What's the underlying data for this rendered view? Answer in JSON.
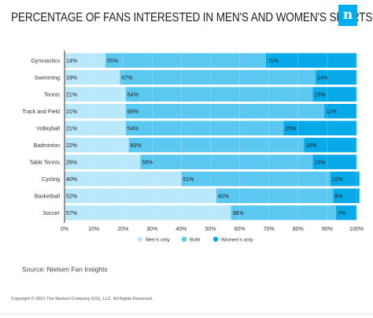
{
  "header": {
    "title": "PERCENTAGE OF FANS INTERESTED IN MEN'S AND WOMEN'S SPORTS",
    "logo_glyph": "n",
    "logo_color": "#00aeef"
  },
  "footer": {
    "source": "Source: Nielsen Fan Insights",
    "copyright": "Copyright © 2021 The Nielsen Company (US), LLC. All Rights Reserved."
  },
  "chart_data": {
    "type": "bar",
    "orientation": "horizontal",
    "stacked": true,
    "categories": [
      "Gymnastics",
      "Swimming",
      "Tennis",
      "Track and Field",
      "Volleyball",
      "Badminton",
      "Table Tennis",
      "Cycling",
      "Basketball",
      "Soccer"
    ],
    "series": [
      {
        "name": "Men's only",
        "color": "#b9e8fa",
        "values": [
          14,
          19,
          21,
          21,
          21,
          22,
          26,
          40,
          52,
          57
        ]
      },
      {
        "name": "Both",
        "color": "#5bc8f2",
        "values": [
          55,
          67,
          64,
          68,
          54,
          60,
          59,
          51,
          40,
          36
        ]
      },
      {
        "name": "Women's only",
        "color": "#07a9e8",
        "values": [
          31,
          14,
          15,
          11,
          25,
          18,
          15,
          10,
          9,
          7
        ]
      }
    ],
    "value_labels": [
      [
        "14%",
        "55%",
        "31%"
      ],
      [
        "19%",
        "67%",
        "14%"
      ],
      [
        "21%",
        "64%",
        "15%"
      ],
      [
        "21%",
        "68%",
        "11%"
      ],
      [
        "21%",
        "54%",
        "25%"
      ],
      [
        "22%",
        "60%",
        "18%"
      ],
      [
        "26%",
        "59%",
        "15%"
      ],
      [
        "40%",
        "51%",
        "10%"
      ],
      [
        "52%",
        "40%",
        "9%"
      ],
      [
        "57%",
        "36%",
        "7%"
      ]
    ],
    "xlim": [
      0,
      100
    ],
    "xticks": [
      "0%",
      "10%",
      "20%",
      "30%",
      "40%",
      "50%",
      "60%",
      "70%",
      "80%",
      "90%",
      "100%"
    ],
    "grid": true,
    "legend_position": "bottom"
  }
}
